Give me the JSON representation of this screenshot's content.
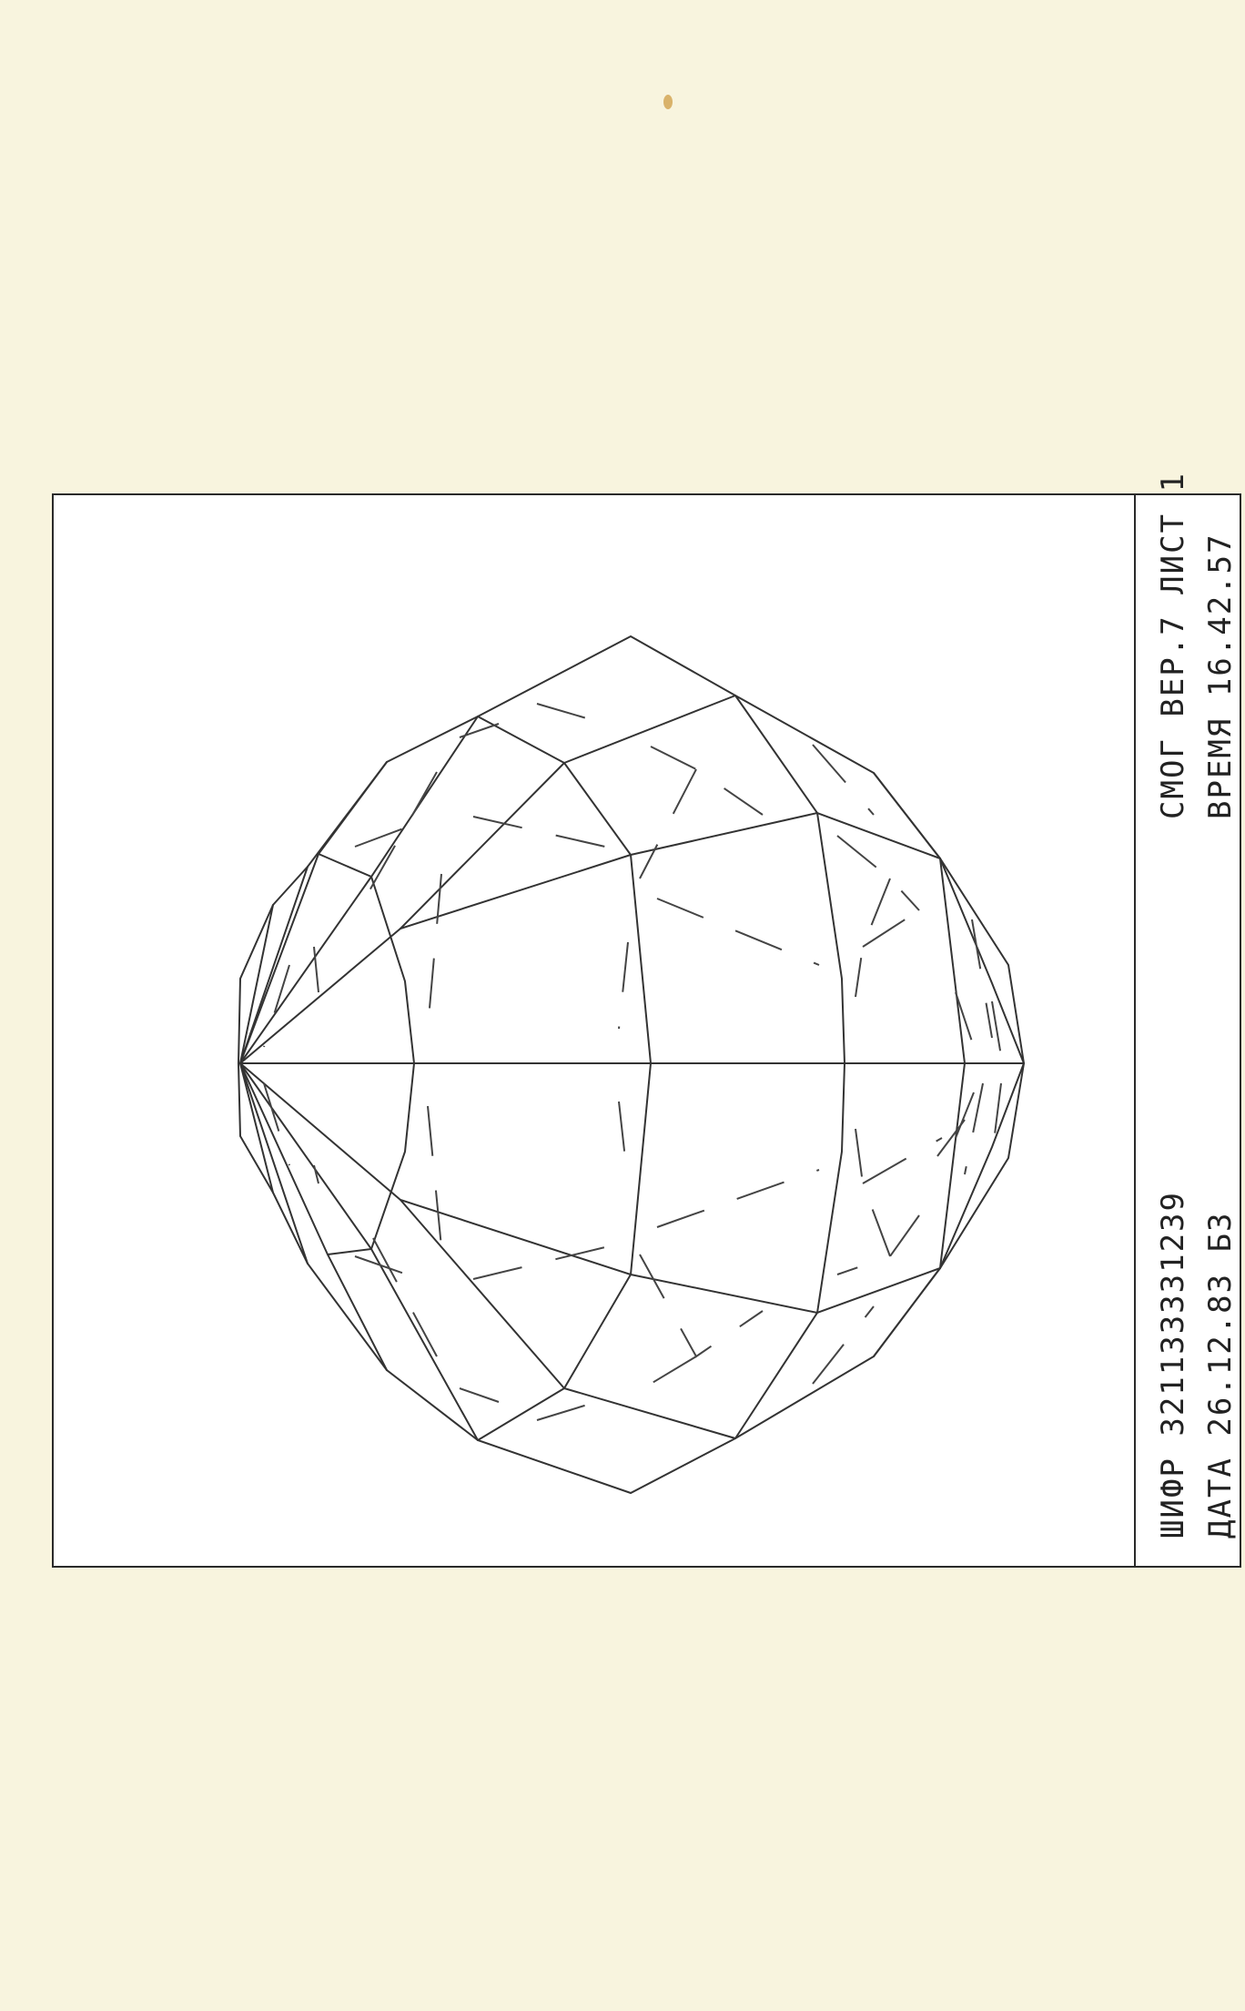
{
  "title_block": {
    "line1": "СМОГ ВЕР.7 ЛИСТ 1",
    "line2": "ВРЕМЯ   16.42.57",
    "line3": "ШИФР 321133331239",
    "line4": "ДАТА 26.12.83   Б3"
  },
  "colors": {
    "paper": "#f8f4de",
    "frame": "#ffffff",
    "ink": "#2a2a2a"
  }
}
